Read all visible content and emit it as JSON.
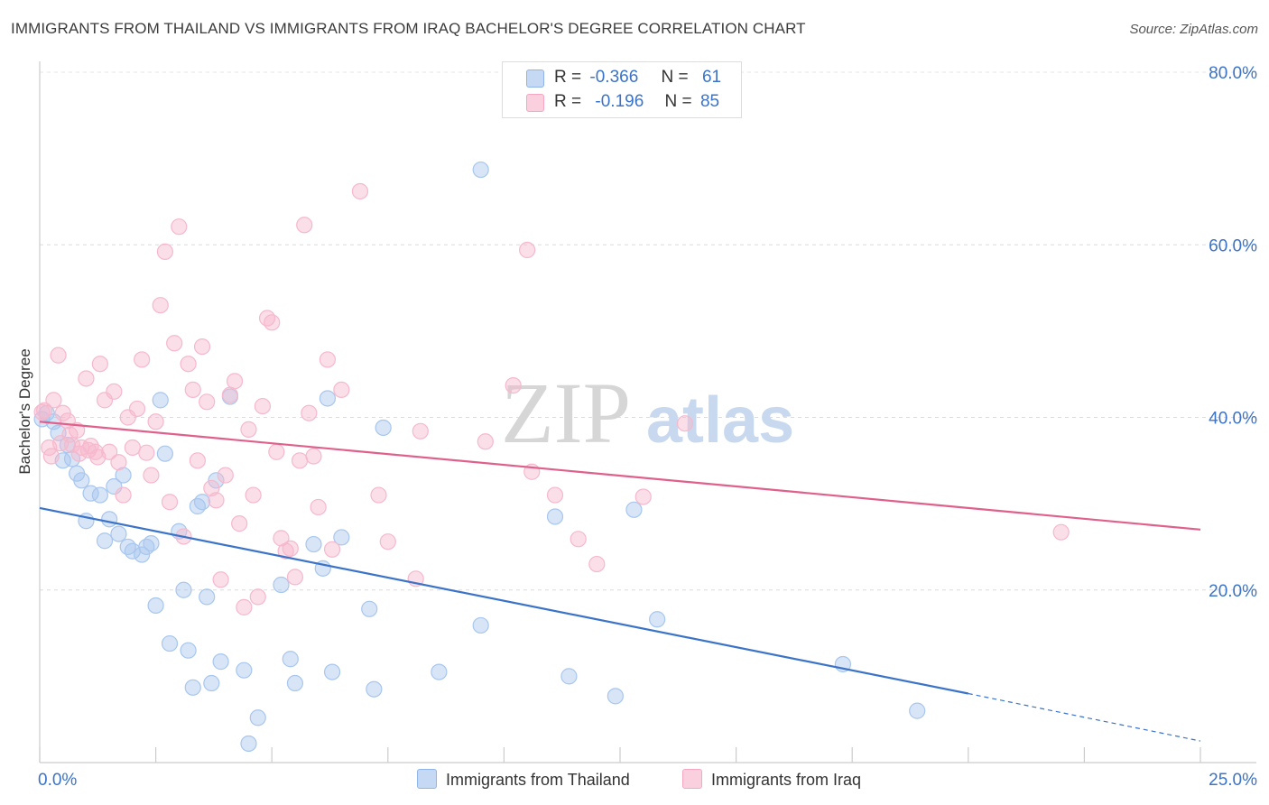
{
  "title": "IMMIGRANTS FROM THAILAND VS IMMIGRANTS FROM IRAQ BACHELOR'S DEGREE CORRELATION CHART",
  "source": "Source: ZipAtlas.com",
  "watermark": {
    "zip": "ZIP",
    "atlas": "atlas"
  },
  "legend": {
    "rows": [
      {
        "r_label": "R =",
        "r_value": "-0.366",
        "n_label": "N =",
        "n_value": "61",
        "color": "#8fb4e8"
      },
      {
        "r_label": "R =",
        "r_value": "-0.196",
        "n_label": "N =",
        "n_value": "85",
        "color": "#f4a7bf"
      }
    ]
  },
  "chart_data": {
    "type": "scatter",
    "xlabel": "",
    "ylabel": "Bachelor's Degree",
    "xlim": [
      0,
      25
    ],
    "ylim": [
      0,
      80
    ],
    "x_tick_labels": [
      "0.0%",
      "25.0%"
    ],
    "y_tick_labels": [
      "20.0%",
      "40.0%",
      "60.0%",
      "80.0%"
    ],
    "y_ticks": [
      20,
      40,
      60,
      80
    ],
    "grid": true,
    "series": [
      {
        "name": "Immigrants from Thailand",
        "color": "#3b73c8",
        "fill": "#a8c6ee",
        "trend": {
          "x0": 0,
          "y0": 29.5,
          "x1": 20,
          "y1": 8.0,
          "dash_to_x": 25,
          "dash_to_y": 2.5
        },
        "points": [
          [
            0.15,
            40.5
          ],
          [
            0.3,
            39.5
          ],
          [
            0.4,
            38.2
          ],
          [
            0.5,
            35.0
          ],
          [
            0.6,
            36.8
          ],
          [
            0.7,
            35.2
          ],
          [
            0.8,
            33.5
          ],
          [
            0.9,
            32.7
          ],
          [
            1.0,
            28.0
          ],
          [
            1.1,
            31.2
          ],
          [
            1.3,
            31.0
          ],
          [
            1.4,
            25.7
          ],
          [
            1.5,
            28.2
          ],
          [
            1.6,
            32.0
          ],
          [
            1.7,
            26.5
          ],
          [
            1.8,
            33.3
          ],
          [
            1.9,
            25.0
          ],
          [
            2.0,
            24.5
          ],
          [
            2.2,
            24.1
          ],
          [
            2.3,
            25.0
          ],
          [
            2.4,
            25.4
          ],
          [
            2.5,
            18.2
          ],
          [
            2.6,
            42.0
          ],
          [
            2.7,
            35.8
          ],
          [
            2.8,
            13.8
          ],
          [
            3.0,
            26.8
          ],
          [
            3.1,
            20.0
          ],
          [
            3.2,
            13.0
          ],
          [
            3.3,
            8.7
          ],
          [
            3.4,
            29.7
          ],
          [
            3.5,
            30.2
          ],
          [
            3.6,
            19.2
          ],
          [
            3.7,
            9.2
          ],
          [
            3.8,
            32.7
          ],
          [
            3.9,
            11.7
          ],
          [
            4.1,
            42.4
          ],
          [
            4.4,
            10.7
          ],
          [
            4.7,
            5.2
          ],
          [
            4.5,
            2.2
          ],
          [
            5.2,
            20.6
          ],
          [
            5.4,
            12.0
          ],
          [
            5.5,
            9.2
          ],
          [
            5.9,
            25.3
          ],
          [
            6.1,
            22.5
          ],
          [
            6.2,
            42.2
          ],
          [
            6.3,
            10.5
          ],
          [
            6.5,
            26.1
          ],
          [
            7.1,
            17.8
          ],
          [
            7.2,
            8.5
          ],
          [
            7.4,
            38.8
          ],
          [
            8.6,
            10.5
          ],
          [
            9.5,
            15.9
          ],
          [
            9.5,
            68.7
          ],
          [
            11.1,
            28.5
          ],
          [
            11.4,
            10.0
          ],
          [
            12.4,
            7.7
          ],
          [
            12.8,
            29.3
          ],
          [
            13.3,
            16.6
          ],
          [
            17.3,
            11.4
          ],
          [
            18.9,
            6.0
          ],
          [
            0.05,
            39.8
          ]
        ]
      },
      {
        "name": "Immigrants from Iraq",
        "color": "#e0608c",
        "fill": "#f6b8cc",
        "trend": {
          "x0": 0,
          "y0": 39.5,
          "x1": 25,
          "y1": 27.0
        },
        "points": [
          [
            0.1,
            40.8
          ],
          [
            0.2,
            36.5
          ],
          [
            0.3,
            42.0
          ],
          [
            0.4,
            47.2
          ],
          [
            0.5,
            40.5
          ],
          [
            0.6,
            39.6
          ],
          [
            0.7,
            36.8
          ],
          [
            0.8,
            38.5
          ],
          [
            0.9,
            36.5
          ],
          [
            1.0,
            44.5
          ],
          [
            1.1,
            36.7
          ],
          [
            1.2,
            36.0
          ],
          [
            1.3,
            46.2
          ],
          [
            1.4,
            42.0
          ],
          [
            1.5,
            36.0
          ],
          [
            1.6,
            43.0
          ],
          [
            1.7,
            34.8
          ],
          [
            1.8,
            31.0
          ],
          [
            1.9,
            40.0
          ],
          [
            2.0,
            36.5
          ],
          [
            2.1,
            41.0
          ],
          [
            2.2,
            46.7
          ],
          [
            2.3,
            35.9
          ],
          [
            2.4,
            33.3
          ],
          [
            2.5,
            39.5
          ],
          [
            2.6,
            53.0
          ],
          [
            2.7,
            59.2
          ],
          [
            2.8,
            30.2
          ],
          [
            2.9,
            48.6
          ],
          [
            3.0,
            62.1
          ],
          [
            3.1,
            26.2
          ],
          [
            3.2,
            46.2
          ],
          [
            3.3,
            43.2
          ],
          [
            3.4,
            35.0
          ],
          [
            3.5,
            48.2
          ],
          [
            3.6,
            41.8
          ],
          [
            3.7,
            31.8
          ],
          [
            3.8,
            30.4
          ],
          [
            3.9,
            21.2
          ],
          [
            4.0,
            33.3
          ],
          [
            4.1,
            42.6
          ],
          [
            4.2,
            44.2
          ],
          [
            4.3,
            27.7
          ],
          [
            4.4,
            18.0
          ],
          [
            4.5,
            38.6
          ],
          [
            4.6,
            31.0
          ],
          [
            4.7,
            19.2
          ],
          [
            4.8,
            41.3
          ],
          [
            4.9,
            51.5
          ],
          [
            5.0,
            51.0
          ],
          [
            5.1,
            36.0
          ],
          [
            5.2,
            26.0
          ],
          [
            5.3,
            24.5
          ],
          [
            5.4,
            24.8
          ],
          [
            5.5,
            21.5
          ],
          [
            5.6,
            35.0
          ],
          [
            5.7,
            62.3
          ],
          [
            5.8,
            40.5
          ],
          [
            5.9,
            35.5
          ],
          [
            6.0,
            29.6
          ],
          [
            6.2,
            46.7
          ],
          [
            6.3,
            24.7
          ],
          [
            6.5,
            43.2
          ],
          [
            6.9,
            66.2
          ],
          [
            7.3,
            31.0
          ],
          [
            7.5,
            25.6
          ],
          [
            8.1,
            21.3
          ],
          [
            8.2,
            38.4
          ],
          [
            9.6,
            37.2
          ],
          [
            10.2,
            43.7
          ],
          [
            10.5,
            59.4
          ],
          [
            10.6,
            33.7
          ],
          [
            11.1,
            31.0
          ],
          [
            11.6,
            25.9
          ],
          [
            12.0,
            23.0
          ],
          [
            13.0,
            30.8
          ],
          [
            13.9,
            39.3
          ],
          [
            22.0,
            26.7
          ],
          [
            0.05,
            40.6
          ],
          [
            0.25,
            35.5
          ],
          [
            0.45,
            37.0
          ],
          [
            0.65,
            38.0
          ],
          [
            0.85,
            35.8
          ],
          [
            1.05,
            36.2
          ],
          [
            1.25,
            35.4
          ]
        ]
      }
    ]
  }
}
